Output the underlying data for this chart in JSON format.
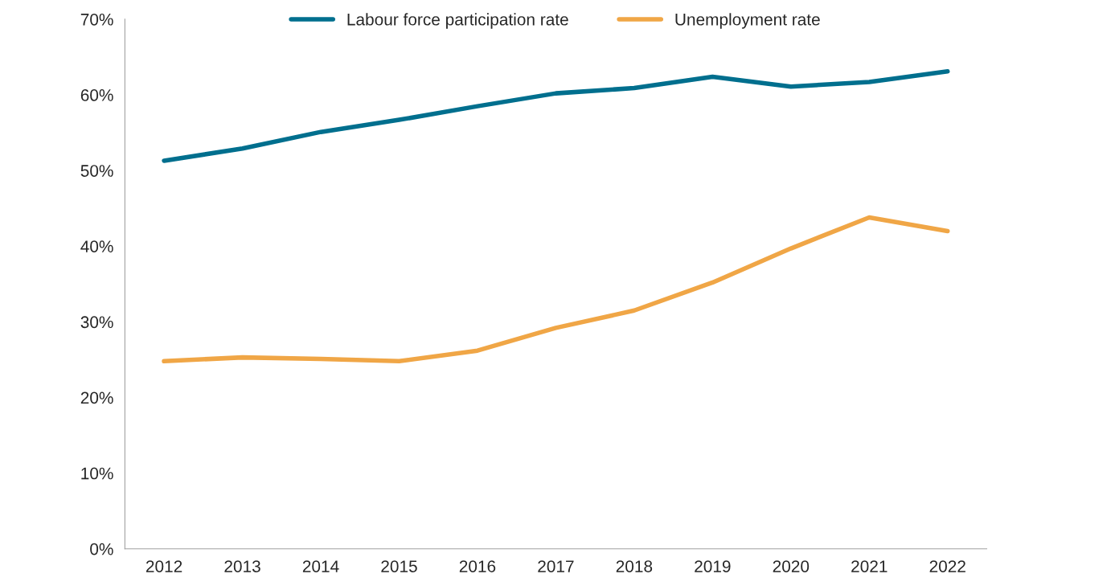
{
  "chart_data": {
    "type": "line",
    "categories": [
      "2012",
      "2013",
      "2014",
      "2015",
      "2016",
      "2017",
      "2018",
      "2019",
      "2020",
      "2021",
      "2022"
    ],
    "series": [
      {
        "name": "Labour force participation rate",
        "color": "#006f8e",
        "values": [
          51.3,
          52.9,
          55.1,
          56.7,
          58.5,
          60.2,
          60.9,
          62.4,
          61.1,
          61.7,
          63.1
        ]
      },
      {
        "name": "Unemployment rate",
        "color": "#f0a646",
        "values": [
          24.8,
          25.3,
          25.1,
          24.8,
          26.2,
          29.2,
          31.5,
          35.2,
          39.7,
          43.8,
          42.0
        ]
      }
    ],
    "ylim": [
      0,
      70
    ],
    "yticks": [
      {
        "value": 0,
        "label": "0%"
      },
      {
        "value": 10,
        "label": "10%"
      },
      {
        "value": 20,
        "label": "20%"
      },
      {
        "value": 30,
        "label": "30%"
      },
      {
        "value": 40,
        "label": "40%"
      },
      {
        "value": 50,
        "label": "50%"
      },
      {
        "value": 60,
        "label": "60%"
      },
      {
        "value": 70,
        "label": "70%"
      }
    ],
    "grid": false,
    "legend": "top",
    "marker": "none",
    "line_style": "solid"
  }
}
